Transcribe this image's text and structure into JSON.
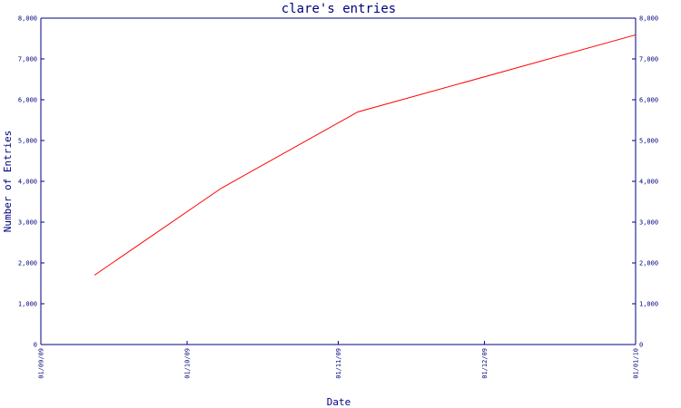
{
  "chart_data": {
    "type": "line",
    "title": "clare's entries",
    "xlabel": "Date",
    "ylabel": "Number of Entries",
    "x_tick_labels": [
      "01/09/09",
      "01/10/09",
      "01/11/09",
      "01/12/09",
      "01/01/10"
    ],
    "x_ticks": [
      "2009-09-01",
      "2009-10-01",
      "2009-11-01",
      "2009-12-01",
      "2010-01-01"
    ],
    "y_ticks": [
      0,
      1000,
      2000,
      3000,
      4000,
      5000,
      6000,
      7000,
      8000
    ],
    "y_tick_labels": [
      "0",
      "1,000",
      "2,000",
      "3,000",
      "4,000",
      "5,000",
      "6,000",
      "7,000",
      "8,000"
    ],
    "ylim": [
      0,
      8000
    ],
    "xlim": [
      "2009-09-01",
      "2010-01-01"
    ],
    "grid": false,
    "series": [
      {
        "x": [
          "2009-09-12",
          "2009-10-08",
          "2009-11-05",
          "2010-01-01"
        ],
        "y": [
          1700,
          3830,
          5700,
          7590
        ]
      }
    ],
    "colors": {
      "axis": "#000080",
      "series": "#ff0000",
      "background": "#ffffff"
    }
  }
}
